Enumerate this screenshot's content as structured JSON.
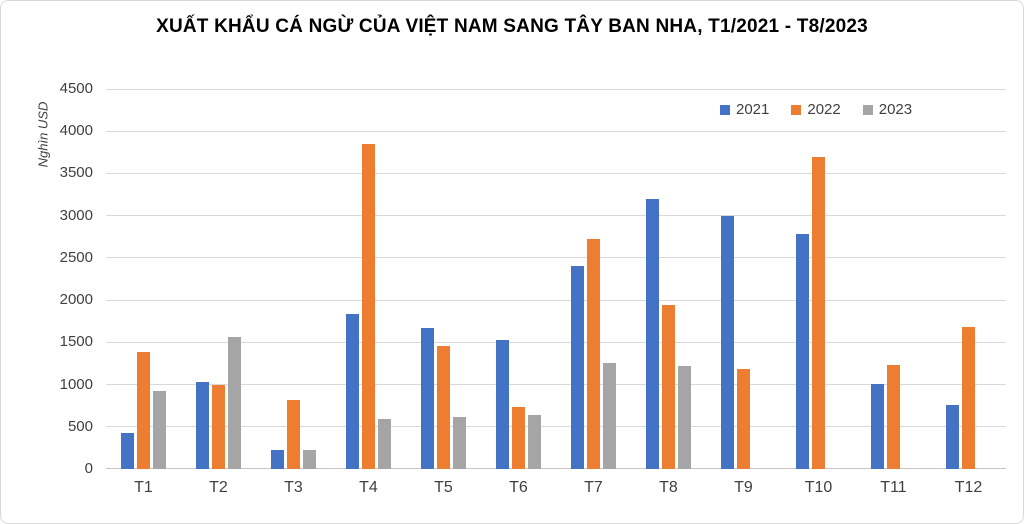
{
  "title": "XUẤT KHẨU CÁ NGỪ CỦA VIỆT NAM SANG TÂY BAN NHA, T1/2021 - T8/2023",
  "chart_data": {
    "type": "bar",
    "title": "XUẤT KHẨU CÁ NGỪ CỦA VIỆT NAM SANG TÂY BAN NHA, T1/2021 - T8/2023",
    "ylabel": "Nghìn USD",
    "xlabel": "",
    "ylim": [
      0,
      4500
    ],
    "yticks": [
      0,
      500,
      1000,
      1500,
      2000,
      2500,
      3000,
      3500,
      4000,
      4500
    ],
    "grid": true,
    "legend_position": "top-right",
    "categories": [
      "T1",
      "T2",
      "T3",
      "T4",
      "T5",
      "T6",
      "T7",
      "T8",
      "T9",
      "T10",
      "T11",
      "T12"
    ],
    "series": [
      {
        "name": "2021",
        "color": "#4472C4",
        "values": [
          430,
          1030,
          230,
          1830,
          1670,
          1530,
          2400,
          3200,
          3000,
          2780,
          1010,
          760
        ]
      },
      {
        "name": "2022",
        "color": "#ED7D31",
        "values": [
          1380,
          1000,
          820,
          3850,
          1460,
          730,
          2720,
          1940,
          1190,
          3700,
          1230,
          1680
        ]
      },
      {
        "name": "2023",
        "color": "#A5A5A5",
        "values": [
          920,
          1560,
          230,
          590,
          620,
          640,
          1260,
          1220,
          null,
          null,
          null,
          null
        ]
      }
    ]
  },
  "colors": {
    "background": "#FFFFFF",
    "gridline": "#D9D9D9",
    "axis_line": "#C6C6C6",
    "tick_text": "#404040",
    "title_text": "#000000",
    "frame_border": "#D9D9D9"
  }
}
